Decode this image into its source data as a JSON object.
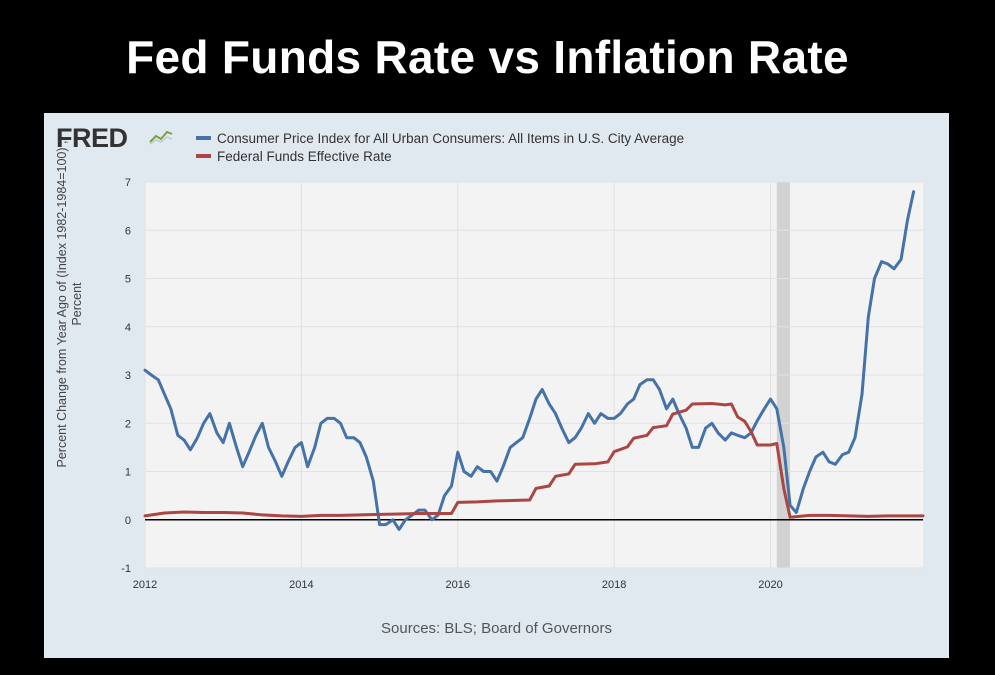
{
  "page": {
    "title": "Fed Funds Rate vs Inflation Rate"
  },
  "panel": {
    "logo_text": "FRED",
    "source": "Sources: BLS; Board of Governors"
  },
  "colors": {
    "cpi": "#4572a7",
    "fedfunds": "#aa4643",
    "recession": "#d2d2d2",
    "plot_bg": "#f3f3f3"
  },
  "chart_data": {
    "type": "line",
    "title": "",
    "xlabel": "",
    "ylabel_line1": "Percent Change from Year Ago of (Index 1982-1984=100) ,",
    "ylabel_line2": "Percent",
    "xlim": [
      2012.0,
      2021.95
    ],
    "ylim": [
      -1,
      7
    ],
    "yticks": [
      -1,
      0,
      1,
      2,
      3,
      4,
      5,
      6,
      7
    ],
    "xticks": [
      2012,
      2014,
      2016,
      2018,
      2020
    ],
    "grid": true,
    "legend_position": "top-left",
    "recession_band": [
      2020.08,
      2020.25
    ],
    "series": [
      {
        "name": "Consumer Price Index for All Urban Consumers: All Items in U.S. City Average",
        "color": "#4572a7",
        "points": [
          [
            2012.0,
            3.1
          ],
          [
            2012.08,
            3.0
          ],
          [
            2012.17,
            2.9
          ],
          [
            2012.25,
            2.6
          ],
          [
            2012.33,
            2.3
          ],
          [
            2012.42,
            1.75
          ],
          [
            2012.5,
            1.65
          ],
          [
            2012.58,
            1.45
          ],
          [
            2012.67,
            1.7
          ],
          [
            2012.75,
            2.0
          ],
          [
            2012.83,
            2.2
          ],
          [
            2012.92,
            1.8
          ],
          [
            2013.0,
            1.6
          ],
          [
            2013.08,
            2.0
          ],
          [
            2013.17,
            1.5
          ],
          [
            2013.25,
            1.1
          ],
          [
            2013.33,
            1.4
          ],
          [
            2013.42,
            1.75
          ],
          [
            2013.5,
            2.0
          ],
          [
            2013.58,
            1.5
          ],
          [
            2013.67,
            1.2
          ],
          [
            2013.75,
            0.9
          ],
          [
            2013.83,
            1.2
          ],
          [
            2013.92,
            1.5
          ],
          [
            2014.0,
            1.6
          ],
          [
            2014.08,
            1.1
          ],
          [
            2014.17,
            1.5
          ],
          [
            2014.25,
            2.0
          ],
          [
            2014.33,
            2.1
          ],
          [
            2014.42,
            2.1
          ],
          [
            2014.5,
            2.0
          ],
          [
            2014.58,
            1.7
          ],
          [
            2014.67,
            1.7
          ],
          [
            2014.75,
            1.6
          ],
          [
            2014.83,
            1.3
          ],
          [
            2014.92,
            0.8
          ],
          [
            2015.0,
            -0.1
          ],
          [
            2015.08,
            -0.1
          ],
          [
            2015.17,
            0.0
          ],
          [
            2015.25,
            -0.2
          ],
          [
            2015.33,
            0.0
          ],
          [
            2015.42,
            0.1
          ],
          [
            2015.5,
            0.2
          ],
          [
            2015.58,
            0.2
          ],
          [
            2015.67,
            0.0
          ],
          [
            2015.75,
            0.1
          ],
          [
            2015.83,
            0.5
          ],
          [
            2015.92,
            0.7
          ],
          [
            2016.0,
            1.4
          ],
          [
            2016.08,
            1.0
          ],
          [
            2016.17,
            0.9
          ],
          [
            2016.25,
            1.1
          ],
          [
            2016.33,
            1.0
          ],
          [
            2016.42,
            1.0
          ],
          [
            2016.5,
            0.8
          ],
          [
            2016.58,
            1.1
          ],
          [
            2016.67,
            1.5
          ],
          [
            2016.75,
            1.6
          ],
          [
            2016.83,
            1.7
          ],
          [
            2016.92,
            2.1
          ],
          [
            2017.0,
            2.5
          ],
          [
            2017.08,
            2.7
          ],
          [
            2017.17,
            2.4
          ],
          [
            2017.25,
            2.2
          ],
          [
            2017.33,
            1.9
          ],
          [
            2017.42,
            1.6
          ],
          [
            2017.5,
            1.7
          ],
          [
            2017.58,
            1.9
          ],
          [
            2017.67,
            2.2
          ],
          [
            2017.75,
            2.0
          ],
          [
            2017.83,
            2.2
          ],
          [
            2017.92,
            2.1
          ],
          [
            2018.0,
            2.1
          ],
          [
            2018.08,
            2.2
          ],
          [
            2018.17,
            2.4
          ],
          [
            2018.25,
            2.5
          ],
          [
            2018.33,
            2.8
          ],
          [
            2018.42,
            2.9
          ],
          [
            2018.5,
            2.9
          ],
          [
            2018.58,
            2.7
          ],
          [
            2018.67,
            2.3
          ],
          [
            2018.75,
            2.5
          ],
          [
            2018.83,
            2.2
          ],
          [
            2018.92,
            1.9
          ],
          [
            2019.0,
            1.5
          ],
          [
            2019.08,
            1.5
          ],
          [
            2019.17,
            1.9
          ],
          [
            2019.25,
            2.0
          ],
          [
            2019.33,
            1.8
          ],
          [
            2019.42,
            1.65
          ],
          [
            2019.5,
            1.8
          ],
          [
            2019.58,
            1.75
          ],
          [
            2019.67,
            1.7
          ],
          [
            2019.75,
            1.8
          ],
          [
            2019.83,
            2.05
          ],
          [
            2019.92,
            2.3
          ],
          [
            2020.0,
            2.5
          ],
          [
            2020.08,
            2.3
          ],
          [
            2020.17,
            1.5
          ],
          [
            2020.25,
            0.3
          ],
          [
            2020.33,
            0.15
          ],
          [
            2020.42,
            0.65
          ],
          [
            2020.5,
            1.0
          ],
          [
            2020.58,
            1.3
          ],
          [
            2020.67,
            1.4
          ],
          [
            2020.75,
            1.2
          ],
          [
            2020.83,
            1.15
          ],
          [
            2020.92,
            1.35
          ],
          [
            2021.0,
            1.4
          ],
          [
            2021.08,
            1.7
          ],
          [
            2021.17,
            2.6
          ],
          [
            2021.25,
            4.2
          ],
          [
            2021.33,
            5.0
          ],
          [
            2021.42,
            5.35
          ],
          [
            2021.5,
            5.3
          ],
          [
            2021.58,
            5.2
          ],
          [
            2021.67,
            5.4
          ],
          [
            2021.75,
            6.2
          ],
          [
            2021.83,
            6.8
          ]
        ]
      },
      {
        "name": "Federal Funds Effective Rate",
        "color": "#aa4643",
        "points": [
          [
            2012.0,
            0.08
          ],
          [
            2012.25,
            0.14
          ],
          [
            2012.5,
            0.16
          ],
          [
            2012.75,
            0.15
          ],
          [
            2013.0,
            0.15
          ],
          [
            2013.25,
            0.14
          ],
          [
            2013.5,
            0.1
          ],
          [
            2013.75,
            0.08
          ],
          [
            2014.0,
            0.07
          ],
          [
            2014.25,
            0.09
          ],
          [
            2014.5,
            0.09
          ],
          [
            2014.75,
            0.1
          ],
          [
            2015.0,
            0.11
          ],
          [
            2015.25,
            0.12
          ],
          [
            2015.5,
            0.13
          ],
          [
            2015.75,
            0.13
          ],
          [
            2015.92,
            0.13
          ],
          [
            2016.0,
            0.36
          ],
          [
            2016.25,
            0.37
          ],
          [
            2016.5,
            0.39
          ],
          [
            2016.75,
            0.4
          ],
          [
            2016.92,
            0.41
          ],
          [
            2017.0,
            0.65
          ],
          [
            2017.17,
            0.7
          ],
          [
            2017.25,
            0.9
          ],
          [
            2017.42,
            0.95
          ],
          [
            2017.5,
            1.15
          ],
          [
            2017.75,
            1.16
          ],
          [
            2017.92,
            1.2
          ],
          [
            2018.0,
            1.41
          ],
          [
            2018.17,
            1.51
          ],
          [
            2018.25,
            1.69
          ],
          [
            2018.42,
            1.75
          ],
          [
            2018.5,
            1.91
          ],
          [
            2018.67,
            1.95
          ],
          [
            2018.75,
            2.19
          ],
          [
            2018.92,
            2.27
          ],
          [
            2019.0,
            2.4
          ],
          [
            2019.25,
            2.41
          ],
          [
            2019.42,
            2.38
          ],
          [
            2019.5,
            2.4
          ],
          [
            2019.58,
            2.13
          ],
          [
            2019.67,
            2.04
          ],
          [
            2019.75,
            1.83
          ],
          [
            2019.83,
            1.55
          ],
          [
            2019.92,
            1.55
          ],
          [
            2020.0,
            1.55
          ],
          [
            2020.08,
            1.58
          ],
          [
            2020.17,
            0.65
          ],
          [
            2020.25,
            0.05
          ],
          [
            2020.5,
            0.09
          ],
          [
            2020.75,
            0.09
          ],
          [
            2021.0,
            0.08
          ],
          [
            2021.25,
            0.07
          ],
          [
            2021.5,
            0.08
          ],
          [
            2021.75,
            0.08
          ],
          [
            2021.95,
            0.08
          ]
        ]
      }
    ]
  }
}
